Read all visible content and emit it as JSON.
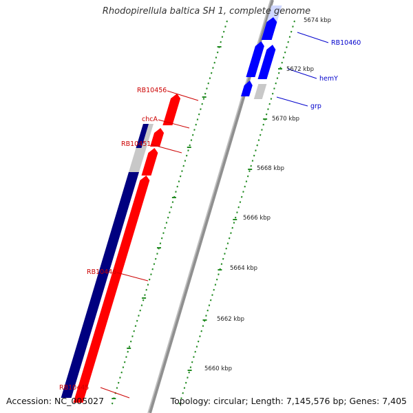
{
  "title": "Rhodopirellula baltica SH 1, complete genome",
  "footer": {
    "accession": "Accession: NC_005027",
    "summary": "Topology: circular; Length: 7,145,576 bp; Genes: 7,405"
  },
  "colors": {
    "forward": "#ff0000",
    "reverse": "#000080",
    "forward_alt": "#0000ff",
    "gray": "#c8c8c8",
    "tick": "#228b22",
    "label_red": "#cc0000",
    "label_blue": "#0000cc",
    "backbone": "#909090"
  },
  "scale_labels": [
    {
      "kbp": 5674,
      "text": "5674 kbp"
    },
    {
      "kbp": 5672,
      "text": "5672 kbp"
    },
    {
      "kbp": 5670,
      "text": "5670 kbp"
    },
    {
      "kbp": 5668,
      "text": "5668 kbp"
    },
    {
      "kbp": 5666,
      "text": "5666 kbp"
    },
    {
      "kbp": 5664,
      "text": "5664 kbp"
    },
    {
      "kbp": 5662,
      "text": "5662 kbp"
    },
    {
      "kbp": 5660,
      "text": "5660 kbp"
    }
  ],
  "genes": [
    {
      "name": "RB10445",
      "color": "red",
      "side": "left"
    },
    {
      "name": "RB10446",
      "color": "red",
      "side": "left"
    },
    {
      "name": "RB10451",
      "color": "red",
      "side": "left"
    },
    {
      "name": "chcA",
      "color": "red",
      "side": "left"
    },
    {
      "name": "RB10456",
      "color": "red",
      "side": "left"
    },
    {
      "name": "grp",
      "color": "blue",
      "side": "right"
    },
    {
      "name": "hemY",
      "color": "blue",
      "side": "right"
    },
    {
      "name": "RB10460",
      "color": "blue",
      "side": "right"
    }
  ]
}
